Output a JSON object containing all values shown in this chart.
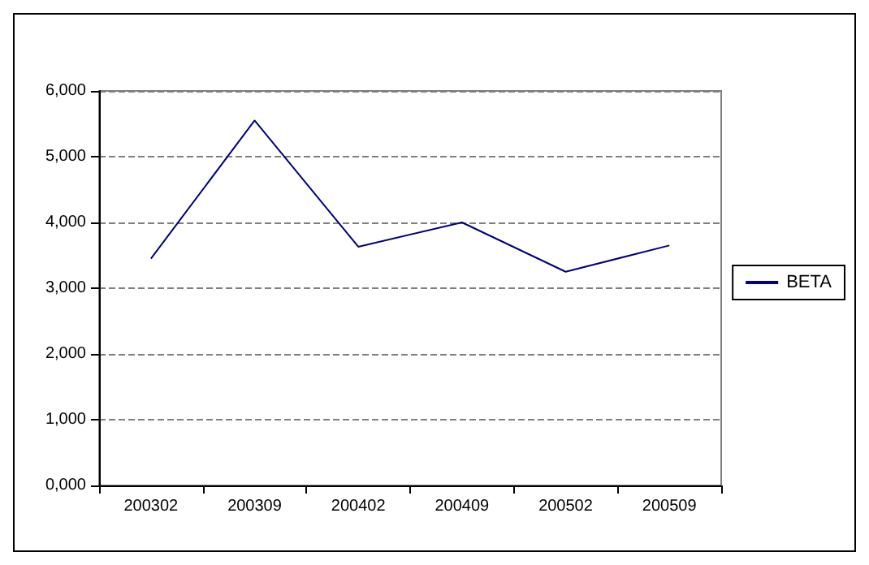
{
  "chart_data": {
    "type": "line",
    "categories": [
      "200302",
      "200309",
      "200402",
      "200409",
      "200502",
      "200509"
    ],
    "series": [
      {
        "name": "BETA",
        "color": "#000080",
        "values": [
          3450,
          5550,
          3630,
          4000,
          3250,
          3650
        ]
      }
    ],
    "ylim": [
      0,
      6000
    ],
    "yticks": [
      {
        "value": 0,
        "label": "0,000"
      },
      {
        "value": 1000,
        "label": "1,000"
      },
      {
        "value": 2000,
        "label": "2,000"
      },
      {
        "value": 3000,
        "label": "3,000"
      },
      {
        "value": 4000,
        "label": "4,000"
      },
      {
        "value": 5000,
        "label": "5,000"
      },
      {
        "value": 6000,
        "label": "6,000"
      }
    ],
    "grid": "y",
    "legend": "right",
    "marker": "none",
    "line_style": "solid"
  }
}
